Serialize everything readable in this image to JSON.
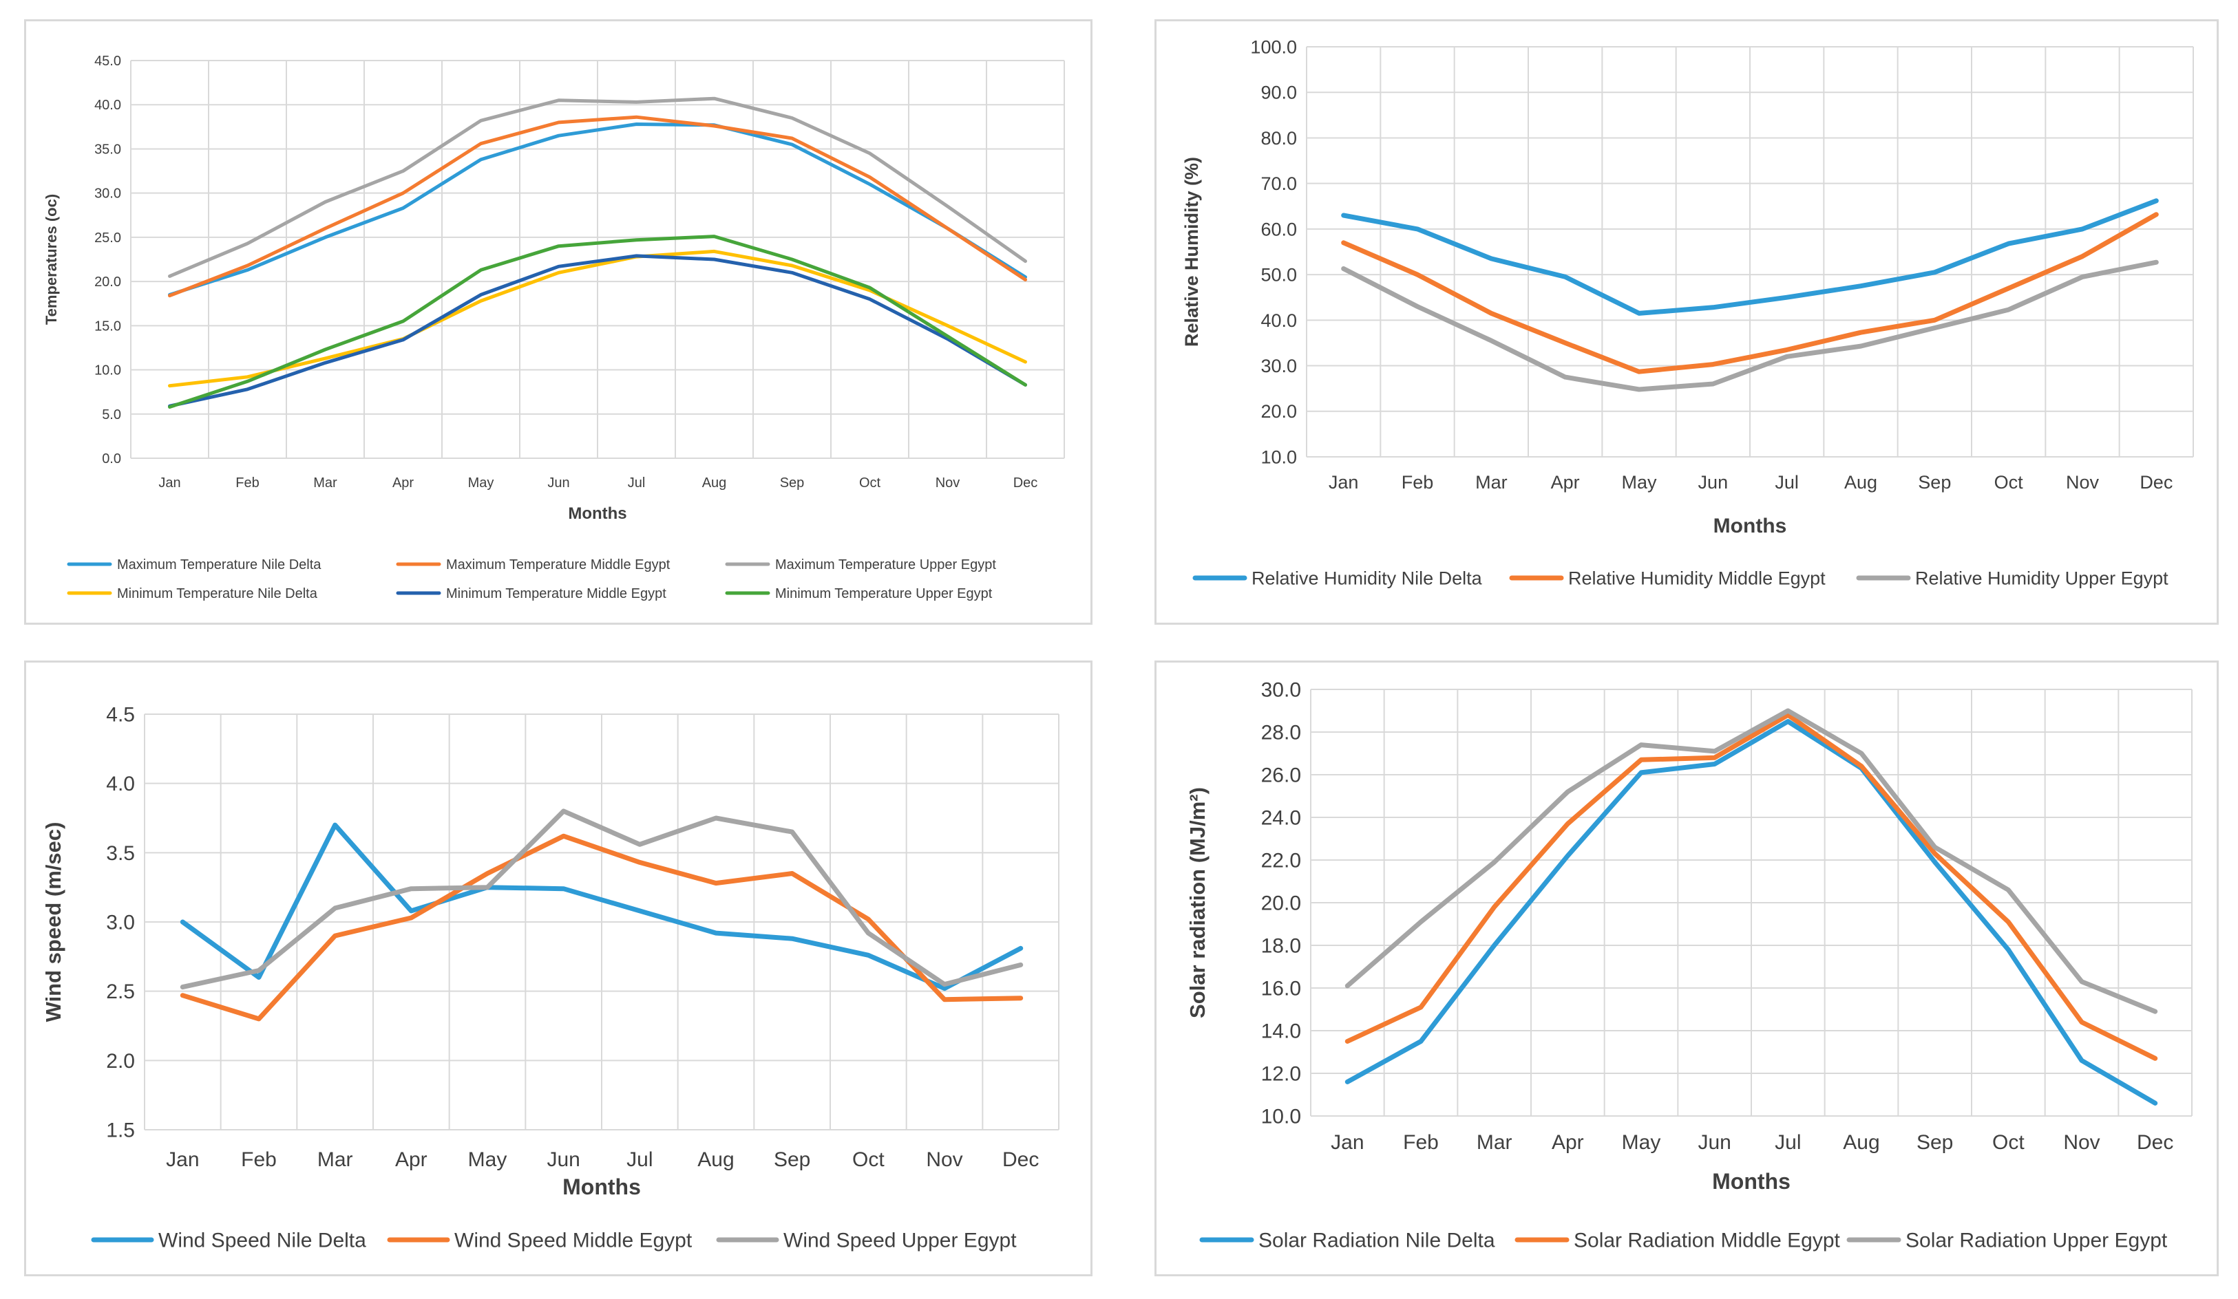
{
  "chart_data": [
    {
      "type": "line",
      "title": "",
      "xlabel": "Months",
      "ylabel": "Temperatures (oc)",
      "ylim": [
        0,
        45
      ],
      "ytick_step": 5,
      "ytick_decimals": 1,
      "legend_position": "bottom",
      "grid": true,
      "categories": [
        "Jan",
        "Feb",
        "Mar",
        "Apr",
        "May",
        "Jun",
        "Jul",
        "Aug",
        "Sep",
        "Oct",
        "Nov",
        "Dec"
      ],
      "series": [
        {
          "name": "Maximum Temperature Nile Delta",
          "color": "#2e9bd6",
          "values": [
            18.5,
            21.3,
            25.0,
            28.3,
            33.8,
            36.5,
            37.8,
            37.7,
            35.5,
            31.0,
            26.0,
            20.5
          ]
        },
        {
          "name": "Maximum Temperature Middle Egypt",
          "color": "#f47b30",
          "values": [
            18.4,
            21.8,
            26.0,
            30.0,
            35.6,
            38.0,
            38.6,
            37.6,
            36.2,
            31.8,
            26.0,
            20.2
          ]
        },
        {
          "name": "Maximum Temperature Upper Egypt",
          "color": "#a5a5a5",
          "values": [
            20.6,
            24.3,
            29.0,
            32.5,
            38.2,
            40.5,
            40.3,
            40.7,
            38.5,
            34.5,
            28.5,
            22.3
          ]
        },
        {
          "name": "Minimum Temperature Nile Delta",
          "color": "#ffc000",
          "values": [
            8.2,
            9.2,
            11.3,
            13.5,
            17.8,
            21.0,
            22.8,
            23.4,
            21.8,
            19.0,
            15.0,
            10.9
          ]
        },
        {
          "name": "Minimum Temperature Middle Egypt",
          "color": "#2461ad",
          "values": [
            5.9,
            7.8,
            10.8,
            13.4,
            18.5,
            21.7,
            22.9,
            22.5,
            21.0,
            18.0,
            13.5,
            8.3
          ]
        },
        {
          "name": "Minimum Temperature Upper Egypt",
          "color": "#46a53a",
          "values": [
            5.8,
            8.7,
            12.3,
            15.5,
            21.3,
            24.0,
            24.7,
            25.1,
            22.5,
            19.3,
            13.8,
            8.3
          ]
        }
      ]
    },
    {
      "type": "line",
      "title": "",
      "xlabel": "Months",
      "ylabel": "Relative Humidity (%)",
      "ylim": [
        10,
        100
      ],
      "ytick_step": 10,
      "ytick_decimals": 1,
      "legend_position": "bottom",
      "grid": true,
      "categories": [
        "Jan",
        "Feb",
        "Mar",
        "Apr",
        "May",
        "Jun",
        "Jul",
        "Aug",
        "Sep",
        "Oct",
        "Nov",
        "Dec"
      ],
      "series": [
        {
          "name": "Relative Humidity Nile Delta",
          "color": "#2e9bd6",
          "values": [
            63.0,
            60.0,
            53.5,
            49.5,
            41.5,
            42.8,
            45.0,
            47.5,
            50.5,
            56.8,
            60.0,
            66.2
          ]
        },
        {
          "name": "Relative Humidity Middle Egypt",
          "color": "#f47b30",
          "values": [
            57.0,
            50.0,
            41.5,
            35.0,
            28.7,
            30.3,
            33.5,
            37.3,
            40.0,
            47.0,
            54.0,
            63.2
          ]
        },
        {
          "name": "Relative Humidity Upper Egypt",
          "color": "#a5a5a5",
          "values": [
            51.3,
            43.0,
            35.5,
            27.5,
            24.8,
            26.0,
            32.0,
            34.3,
            38.3,
            42.3,
            49.5,
            52.7
          ]
        }
      ]
    },
    {
      "type": "line",
      "title": "",
      "xlabel": "Months",
      "ylabel": "Wind speed (m/sec)",
      "ylim": [
        1.5,
        4.5
      ],
      "ytick_step": 0.5,
      "ytick_decimals": 1,
      "legend_position": "bottom",
      "grid": true,
      "categories": [
        "Jan",
        "Feb",
        "Mar",
        "Apr",
        "May",
        "Jun",
        "Jul",
        "Aug",
        "Sep",
        "Oct",
        "Nov",
        "Dec"
      ],
      "series": [
        {
          "name": "Wind Speed  Nile Delta",
          "color": "#2e9bd6",
          "values": [
            3.0,
            2.6,
            3.7,
            3.08,
            3.25,
            3.24,
            3.08,
            2.92,
            2.88,
            2.76,
            2.52,
            2.81
          ]
        },
        {
          "name": "Wind Speed  Middle Egypt",
          "color": "#f47b30",
          "values": [
            2.47,
            2.3,
            2.9,
            3.03,
            3.35,
            3.62,
            3.43,
            3.28,
            3.35,
            3.02,
            2.44,
            2.45
          ]
        },
        {
          "name": "Wind Speed  Upper Egypt",
          "color": "#a5a5a5",
          "values": [
            2.53,
            2.65,
            3.1,
            3.24,
            3.25,
            3.8,
            3.56,
            3.75,
            3.65,
            2.92,
            2.55,
            2.69
          ]
        }
      ]
    },
    {
      "type": "line",
      "title": "",
      "xlabel": "Months",
      "ylabel": "Solar radiation (MJ/m²)",
      "ylim": [
        10,
        30
      ],
      "ytick_step": 2,
      "ytick_decimals": 1,
      "legend_position": "bottom",
      "grid": true,
      "categories": [
        "Jan",
        "Feb",
        "Mar",
        "Apr",
        "May",
        "Jun",
        "Jul",
        "Aug",
        "Sep",
        "Oct",
        "Nov",
        "Dec"
      ],
      "series": [
        {
          "name": "Solar Radiation Nile Delta",
          "color": "#2e9bd6",
          "values": [
            11.6,
            13.5,
            18.0,
            22.2,
            26.1,
            26.5,
            28.5,
            26.3,
            21.9,
            17.8,
            12.6,
            10.6
          ]
        },
        {
          "name": "Solar Radiation Middle Egypt",
          "color": "#f47b30",
          "values": [
            13.5,
            15.1,
            19.8,
            23.7,
            26.7,
            26.8,
            28.8,
            26.4,
            22.3,
            19.1,
            14.4,
            12.7
          ]
        },
        {
          "name": "Solar Radiation Upper Egypt",
          "color": "#a5a5a5",
          "values": [
            16.1,
            19.1,
            21.9,
            25.2,
            27.4,
            27.1,
            29.0,
            27.0,
            22.6,
            20.6,
            16.3,
            14.9
          ]
        }
      ]
    }
  ]
}
